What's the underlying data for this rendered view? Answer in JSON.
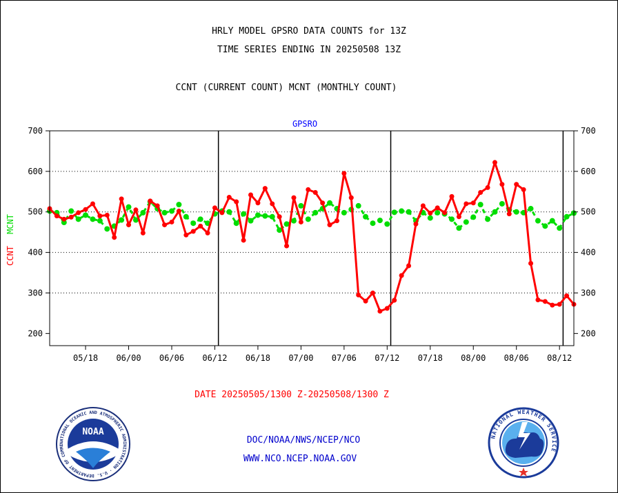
{
  "header": {
    "title_line1": "HRLY MODEL GPSRO DATA COUNTS for 13Z",
    "title_line2": "TIME SERIES ENDING IN 20250508 13Z",
    "subtitle": "CCNT (CURRENT COUNT) MCNT (MONTHLY COUNT)"
  },
  "footer": {
    "date_range": "DATE 20250505/1300 Z-20250508/1300 Z",
    "link1": "DOC/NOAA/NWS/NCEP/NCO",
    "link2": "WWW.NCO.NCEP.NOAA.GOV"
  },
  "logos": {
    "noaa_text": "NOAA",
    "noaa_ring": "NATIONAL OCEANIC AND ATMOSPHERIC ADMINISTRATION · U.S. DEPARTMENT OF COMMERCE",
    "nws_ring": "NATIONAL WEATHER SERVICE"
  },
  "colors": {
    "ccnt": "#ff0000",
    "mcnt": "#00dd00",
    "series_title": "#0000ff",
    "date_text": "#ff0000",
    "link_text": "#0000cc"
  },
  "chart_data": {
    "type": "line",
    "title": "GPSRO",
    "ylabel_ccnt": "CCNT",
    "ylabel_mcnt": "MCNT",
    "ylim": [
      170,
      700
    ],
    "yticks": [
      200,
      300,
      400,
      500,
      600,
      700
    ],
    "ygrid": [
      300,
      400,
      500,
      600
    ],
    "xlim": [
      0,
      73
    ],
    "xtick_positions": [
      5,
      11,
      17,
      23,
      29,
      35,
      41,
      47,
      53,
      59,
      65,
      71
    ],
    "xtick_labels": [
      "05/18",
      "06/00",
      "06/06",
      "06/12",
      "06/18",
      "07/00",
      "07/06",
      "07/12",
      "07/18",
      "08/00",
      "08/06",
      "08/12"
    ],
    "day_boundaries": [
      23.5,
      47.5,
      71.5
    ],
    "series": [
      {
        "name": "CCNT",
        "values": [
          508,
          490,
          482,
          487,
          498,
          506,
          520,
          490,
          492,
          437,
          532,
          468,
          505,
          448,
          527,
          515,
          468,
          475,
          502,
          443,
          452,
          465,
          448,
          510,
          498,
          536,
          525,
          430,
          542,
          522,
          558,
          520,
          488,
          416,
          535,
          475,
          555,
          548,
          522,
          468,
          478,
          595,
          535,
          295,
          280,
          300,
          255,
          262,
          282,
          343,
          367,
          470,
          515,
          497,
          510,
          498,
          538,
          488,
          520,
          522,
          548,
          560,
          622,
          568,
          495,
          568,
          555,
          373,
          283,
          279,
          270,
          272,
          293,
          272
        ]
      },
      {
        "name": "MCNT",
        "values": [
          502,
          498,
          474,
          502,
          482,
          492,
          482,
          478,
          458,
          465,
          480,
          512,
          480,
          498,
          525,
          508,
          498,
          502,
          518,
          488,
          472,
          482,
          472,
          495,
          502,
          500,
          472,
          495,
          478,
          492,
          490,
          488,
          455,
          470,
          478,
          515,
          482,
          498,
          508,
          522,
          508,
          498,
          506,
          515,
          488,
          472,
          479,
          470,
          499,
          502,
          500,
          478,
          498,
          485,
          498,
          495,
          482,
          460,
          475,
          487,
          518,
          482,
          500,
          520,
          505,
          500,
          498,
          508,
          478,
          465,
          478,
          460,
          488,
          497
        ]
      }
    ]
  }
}
